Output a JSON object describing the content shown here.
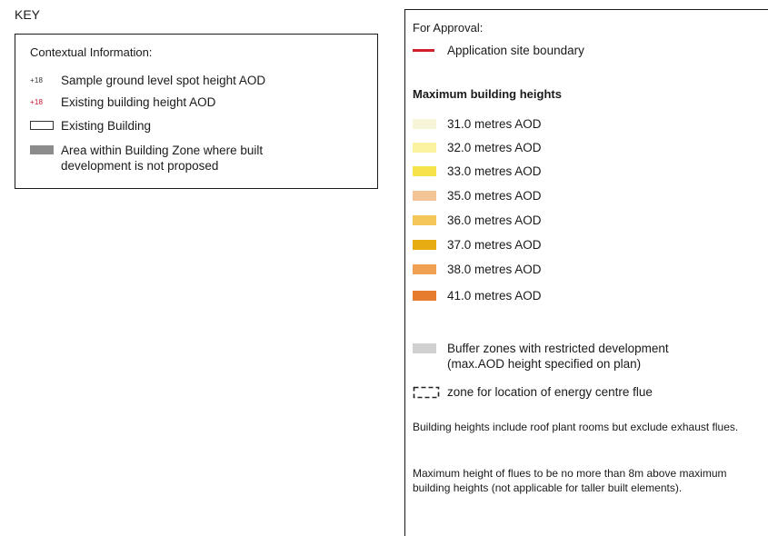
{
  "key_title": "KEY",
  "contextual": {
    "heading": "Contextual Information:",
    "spot_black": "+18",
    "spot_red": "+18",
    "items": [
      "Sample ground level spot height AOD",
      "Existing building height AOD",
      "Existing Building",
      "Area within Building Zone where built development is not proposed"
    ]
  },
  "approval": {
    "title": "For Approval:",
    "boundary_label": "Application site boundary",
    "max_heights_title": "Maximum building heights",
    "heights": [
      {
        "label": "31.0 metres AOD",
        "color": "#f7f5d8"
      },
      {
        "label": "32.0 metres AOD",
        "color": "#fbf3a0"
      },
      {
        "label": "33.0 metres AOD",
        "color": "#f6e24a"
      },
      {
        "label": "35.0 metres AOD",
        "color": "#f3c596"
      },
      {
        "label": "36.0 metres AOD",
        "color": "#f3c75a"
      },
      {
        "label": "37.0 metres AOD",
        "color": "#e6ac12"
      },
      {
        "label": "38.0 metres AOD",
        "color": "#f0a050"
      },
      {
        "label": "41.0 metres AOD",
        "color": "#e57c2e"
      }
    ],
    "buffer_label": "Buffer zones with restricted development (max.AOD height specified on plan)",
    "flue_label": "zone for location of energy centre flue",
    "note1": "Building heights include roof plant rooms but exclude exhaust flues.",
    "note2": "Maximum height of flues to be no more than 8m above maximum building heights (not applicable for taller built elements)."
  }
}
